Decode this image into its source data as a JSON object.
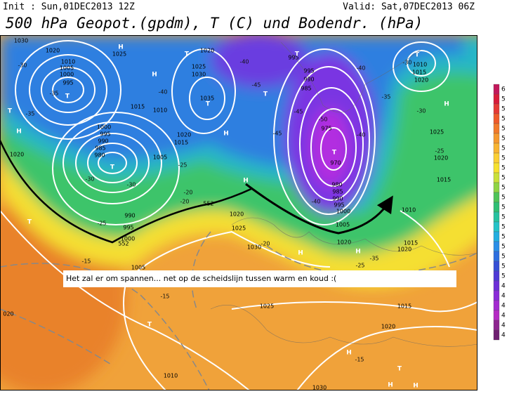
{
  "header": {
    "init": "Init : Sun,01DEC2013 12Z",
    "valid": "Valid: Sat,07DEC2013 06Z",
    "title": "500 hPa Geopot.(gpdm), T (C) und Bodendr. (hPa)"
  },
  "annotation": "Het zal er om spannen... net op de scheidslijn tussen warm en koud :(",
  "map_labels": {
    "pressure": [
      "1030",
      "1020",
      "1025",
      "1020",
      "1025",
      "1030",
      "1010",
      "1005",
      "1000",
      "995",
      "1015",
      "1010",
      "1035",
      "995",
      "995",
      "990",
      "985",
      "975",
      "970",
      "1000",
      "995",
      "990",
      "985",
      "980",
      "1020",
      "1015",
      "1005",
      "1020",
      "990",
      "995",
      "1000",
      "1020",
      "1025",
      "1030",
      "1005",
      "980",
      "985",
      "990",
      "995",
      "1000",
      "1005",
      "1010",
      "1015",
      "1020",
      "1010",
      "1015",
      "1020",
      "1025",
      "1020",
      "1015",
      "1025",
      "1015",
      "1020",
      "1010",
      "1030",
      "020",
      "1020"
    ],
    "centers": [
      "H",
      "T",
      "H",
      "T",
      "T",
      "H",
      "T",
      "T",
      "H",
      "T",
      "T",
      "T",
      "H",
      "T",
      "H",
      "T",
      "T",
      "H",
      "H",
      "H",
      "T",
      "H",
      "H"
    ],
    "temperature": [
      "-30",
      "-35",
      "-35",
      "-30",
      "-30",
      "-25",
      "-20",
      "-20",
      "-25",
      "-40",
      "-40",
      "-45",
      "-45",
      "-50",
      "-45",
      "-40",
      "-40",
      "-40",
      "-35",
      "-30",
      "-25",
      "-35",
      "-25",
      "-15",
      "-15",
      "-20",
      "-15",
      "-30"
    ],
    "contour": [
      "552",
      "552"
    ]
  },
  "legend_labels": [
    "6",
    "5",
    "5",
    "5",
    "5",
    "5",
    "5",
    "5",
    "5",
    "5",
    "5",
    "5",
    "5",
    "5",
    "5",
    "5",
    "5",
    "5",
    "5",
    "5",
    "4",
    "4",
    "4",
    "4",
    "4",
    "4"
  ]
}
